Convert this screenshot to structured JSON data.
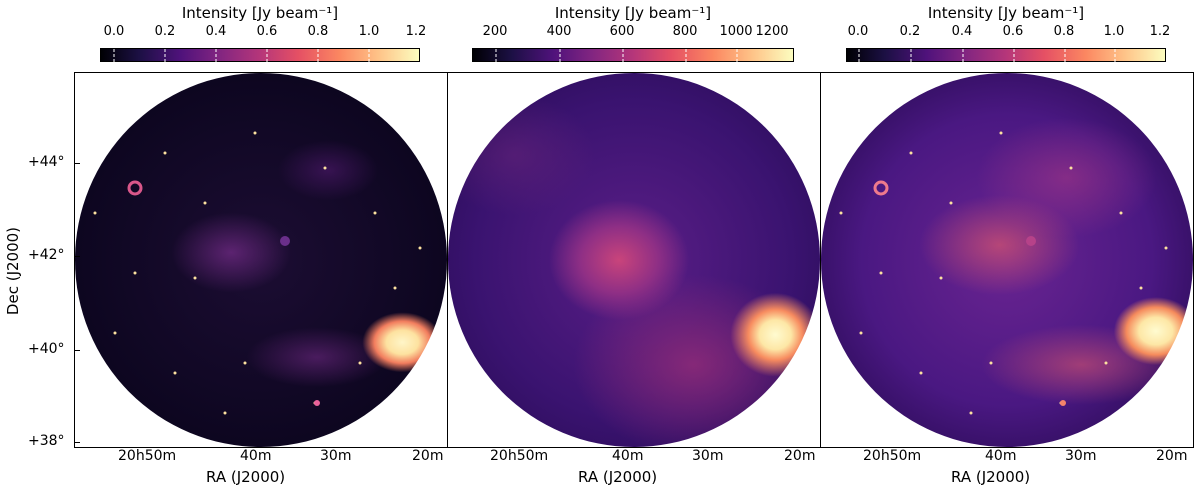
{
  "colorbars": [
    {
      "title": "Intensity [Jy beam⁻¹]",
      "ticks": [
        "0.0",
        "0.2",
        "0.4",
        "0.6",
        "0.8",
        "1.0",
        "1.2"
      ]
    },
    {
      "title": "Intensity [Jy beam⁻¹]",
      "ticks": [
        "200",
        "400",
        "600",
        "800",
        "1000",
        "1200"
      ]
    },
    {
      "title": "Intensity [Jy beam⁻¹]",
      "ticks": [
        "0.0",
        "0.2",
        "0.4",
        "0.6",
        "0.8",
        "1.0",
        "1.2"
      ]
    }
  ],
  "colormap": "magma",
  "y_axis": {
    "label": "Dec (J2000)",
    "ticks": [
      "+44°",
      "+42°",
      "+40°",
      "+38°"
    ]
  },
  "x_axis": {
    "label": "RA (J2000)",
    "ticks": [
      "20h50m",
      "40m",
      "30m",
      "20m"
    ]
  },
  "panels": [
    {
      "description": "High-resolution radio continuum map",
      "style": "dark-filamentary"
    },
    {
      "description": "Low-resolution smoothed map",
      "style": "smooth-diffuse"
    },
    {
      "description": "Combined map",
      "style": "bright-filamentary"
    }
  ]
}
